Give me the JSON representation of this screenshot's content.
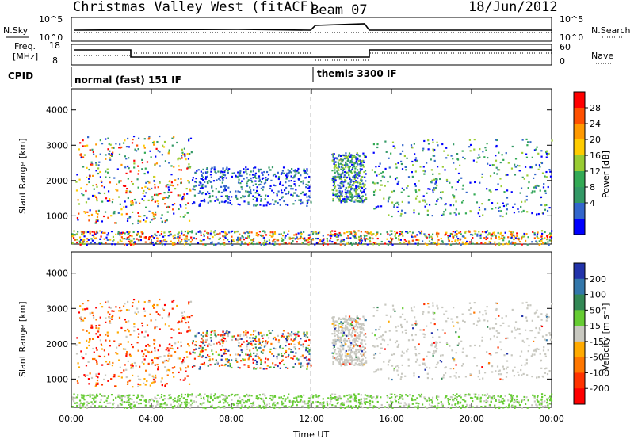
{
  "header": {
    "radar": "Christmas Valley West (fitACF)",
    "beam": "Beam 07",
    "date": "18/Jun/2012"
  },
  "param_panels": {
    "nsky_label": "N.Sky",
    "nsky_ticks": [
      "10^5",
      "10^0"
    ],
    "nsearch_label": "N.Search",
    "nsearch_ticks": [
      "10^5",
      "10^0"
    ],
    "freq_label_1": "Freq.",
    "freq_label_2": "[MHz]",
    "freq_ticks": [
      "18",
      "8"
    ],
    "nave_label": "Nave",
    "nave_ticks": [
      "60",
      "0"
    ],
    "cpid_label": "CPID",
    "cpid_mode_1": "normal (fast) 151 IF",
    "cpid_mode_2": "themis 3300 IF"
  },
  "chart_data": [
    {
      "type": "heatmap",
      "parameter": "Power",
      "xlabel": "Time UT",
      "ylabel": "Slant Range [km]",
      "x_ticks": [
        "00:00",
        "04:00",
        "08:00",
        "12:00",
        "16:00",
        "20:00",
        "00:00"
      ],
      "y_ticks": [
        1000,
        2000,
        3000,
        4000
      ],
      "ylim": [
        200,
        4600
      ],
      "xlim_hours": [
        0,
        24
      ],
      "colorbar_label": "Power [dB]",
      "colorbar_ticks": [
        "28",
        "24",
        "20",
        "16",
        "12",
        "8",
        "4"
      ],
      "colorbar_colors": [
        "#ff0000",
        "#ff5000",
        "#ff9900",
        "#ffcc00",
        "#99cc33",
        "#33aa55",
        "#339966",
        "#3366cc",
        "#0000ff"
      ],
      "scatter_regions": [
        {
          "t0": 0.2,
          "t1": 6.0,
          "r0": 800,
          "r1": 3300,
          "level": "mixed"
        },
        {
          "t0": 6.0,
          "t1": 12.0,
          "r0": 1300,
          "r1": 2400,
          "level": "low"
        },
        {
          "t0": 13.0,
          "t1": 14.7,
          "r0": 1400,
          "r1": 2800,
          "level": "mid"
        },
        {
          "t0": 15.0,
          "t1": 24.0,
          "r0": 1000,
          "r1": 3200,
          "level": "mid"
        },
        {
          "t0": 0.0,
          "t1": 24.0,
          "r0": 200,
          "r1": 600,
          "level": "ground"
        }
      ]
    },
    {
      "type": "heatmap",
      "parameter": "Velocity",
      "xlabel": "Time UT",
      "ylabel": "Slant Range [km]",
      "x_ticks": [
        "00:00",
        "04:00",
        "08:00",
        "12:00",
        "16:00",
        "20:00",
        "00:00"
      ],
      "y_ticks": [
        1000,
        2000,
        3000,
        4000
      ],
      "ylim": [
        200,
        4600
      ],
      "xlim_hours": [
        0,
        24
      ],
      "colorbar_label": "Velocity [m s⁻¹]",
      "colorbar_ticks": [
        "200",
        "100",
        "50",
        "15",
        "-15",
        "-50",
        "-100",
        "-200"
      ],
      "colorbar_colors": [
        "#2233aa",
        "#3377aa",
        "#338855",
        "#66cc33",
        "#c8c8c0",
        "#ffaa00",
        "#ff7700",
        "#ff3300",
        "#ff0000"
      ]
    }
  ]
}
